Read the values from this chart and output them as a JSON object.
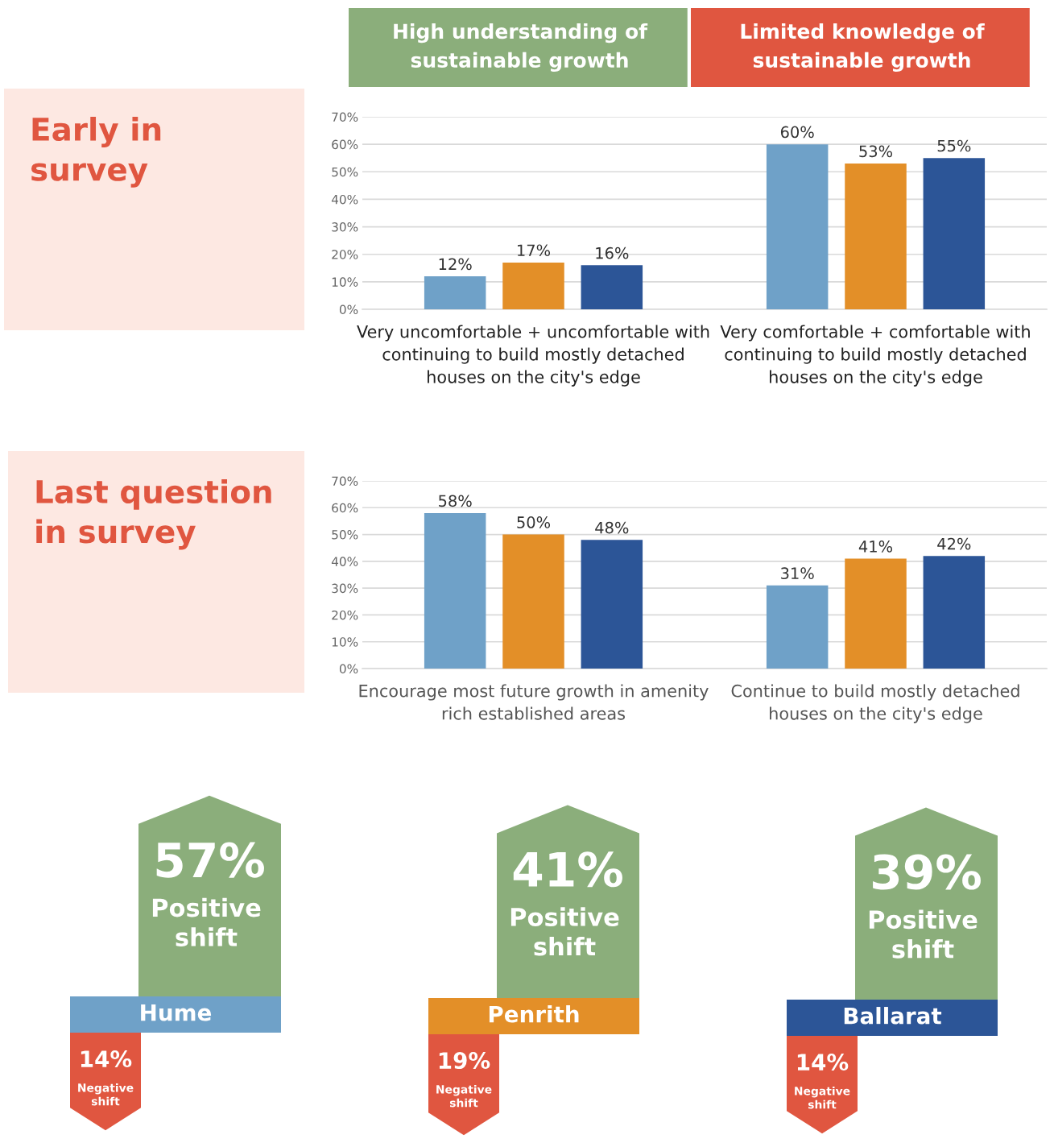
{
  "chart_data": [
    {
      "type": "bar",
      "title": "Early in survey",
      "annotations": [
        "High understanding of sustainable growth",
        "Limited knowledge of sustainable growth"
      ],
      "categories": [
        "Very uncomfortable + uncomfortable with continuing to build mostly detached houses on the city's edge",
        "Very comfortable + comfortable with continuing to build mostly detached houses on the city's edge"
      ],
      "series": [
        {
          "color": "#6fa1c8",
          "values": [
            12,
            60
          ],
          "value_labels": [
            "12%",
            "60%"
          ]
        },
        {
          "color": "#e38f28",
          "values": [
            17,
            53
          ],
          "value_labels": [
            "17%",
            "53%"
          ]
        },
        {
          "color": "#2c5597",
          "values": [
            16,
            55
          ],
          "value_labels": [
            "16%",
            "55%"
          ]
        }
      ],
      "ylim": [
        0,
        70
      ],
      "yticks": [
        {
          "value": 0,
          "label": "0%"
        },
        {
          "value": 10,
          "label": "10%"
        },
        {
          "value": 20,
          "label": "20%"
        },
        {
          "value": 30,
          "label": "30%"
        },
        {
          "value": 40,
          "label": "40%"
        },
        {
          "value": 50,
          "label": "50%"
        },
        {
          "value": 60,
          "label": "60%"
        },
        {
          "value": 70,
          "label": "70%"
        }
      ],
      "grid": "y",
      "legend": false
    },
    {
      "type": "bar",
      "title": "Last question in survey",
      "categories": [
        "Encourage most future growth in amenity rich established areas",
        "Continue to build mostly detached houses on the city's edge"
      ],
      "series": [
        {
          "color": "#6fa1c8",
          "values": [
            58,
            31
          ],
          "value_labels": [
            "58%",
            "31%"
          ]
        },
        {
          "color": "#e38f28",
          "values": [
            50,
            41
          ],
          "value_labels": [
            "50%",
            "41%"
          ]
        },
        {
          "color": "#2c5597",
          "values": [
            48,
            42
          ],
          "value_labels": [
            "48%",
            "42%"
          ]
        }
      ],
      "ylim": [
        0,
        70
      ],
      "yticks": [
        {
          "value": 0,
          "label": "0%"
        },
        {
          "value": 10,
          "label": "10%"
        },
        {
          "value": 20,
          "label": "20%"
        },
        {
          "value": 30,
          "label": "30%"
        },
        {
          "value": 40,
          "label": "40%"
        },
        {
          "value": 50,
          "label": "50%"
        },
        {
          "value": 60,
          "label": "60%"
        },
        {
          "value": 70,
          "label": "70%"
        }
      ],
      "grid": "y",
      "legend": false
    },
    {
      "type": "other",
      "categories": [
        "Hume",
        "Penrith",
        "Ballarat"
      ],
      "colors": [
        "#6fa1c8",
        "#e38f28",
        "#2c5597"
      ],
      "series": [
        {
          "name": "Positive shift",
          "color": "#8bae7b",
          "values": [
            57,
            41,
            39
          ],
          "value_labels": [
            "57%",
            "41%",
            "39%"
          ]
        },
        {
          "name": "Negative shift",
          "color": "#e05640",
          "values": [
            14,
            19,
            14
          ],
          "value_labels": [
            "14%",
            "19%",
            "14%"
          ]
        }
      ]
    }
  ]
}
